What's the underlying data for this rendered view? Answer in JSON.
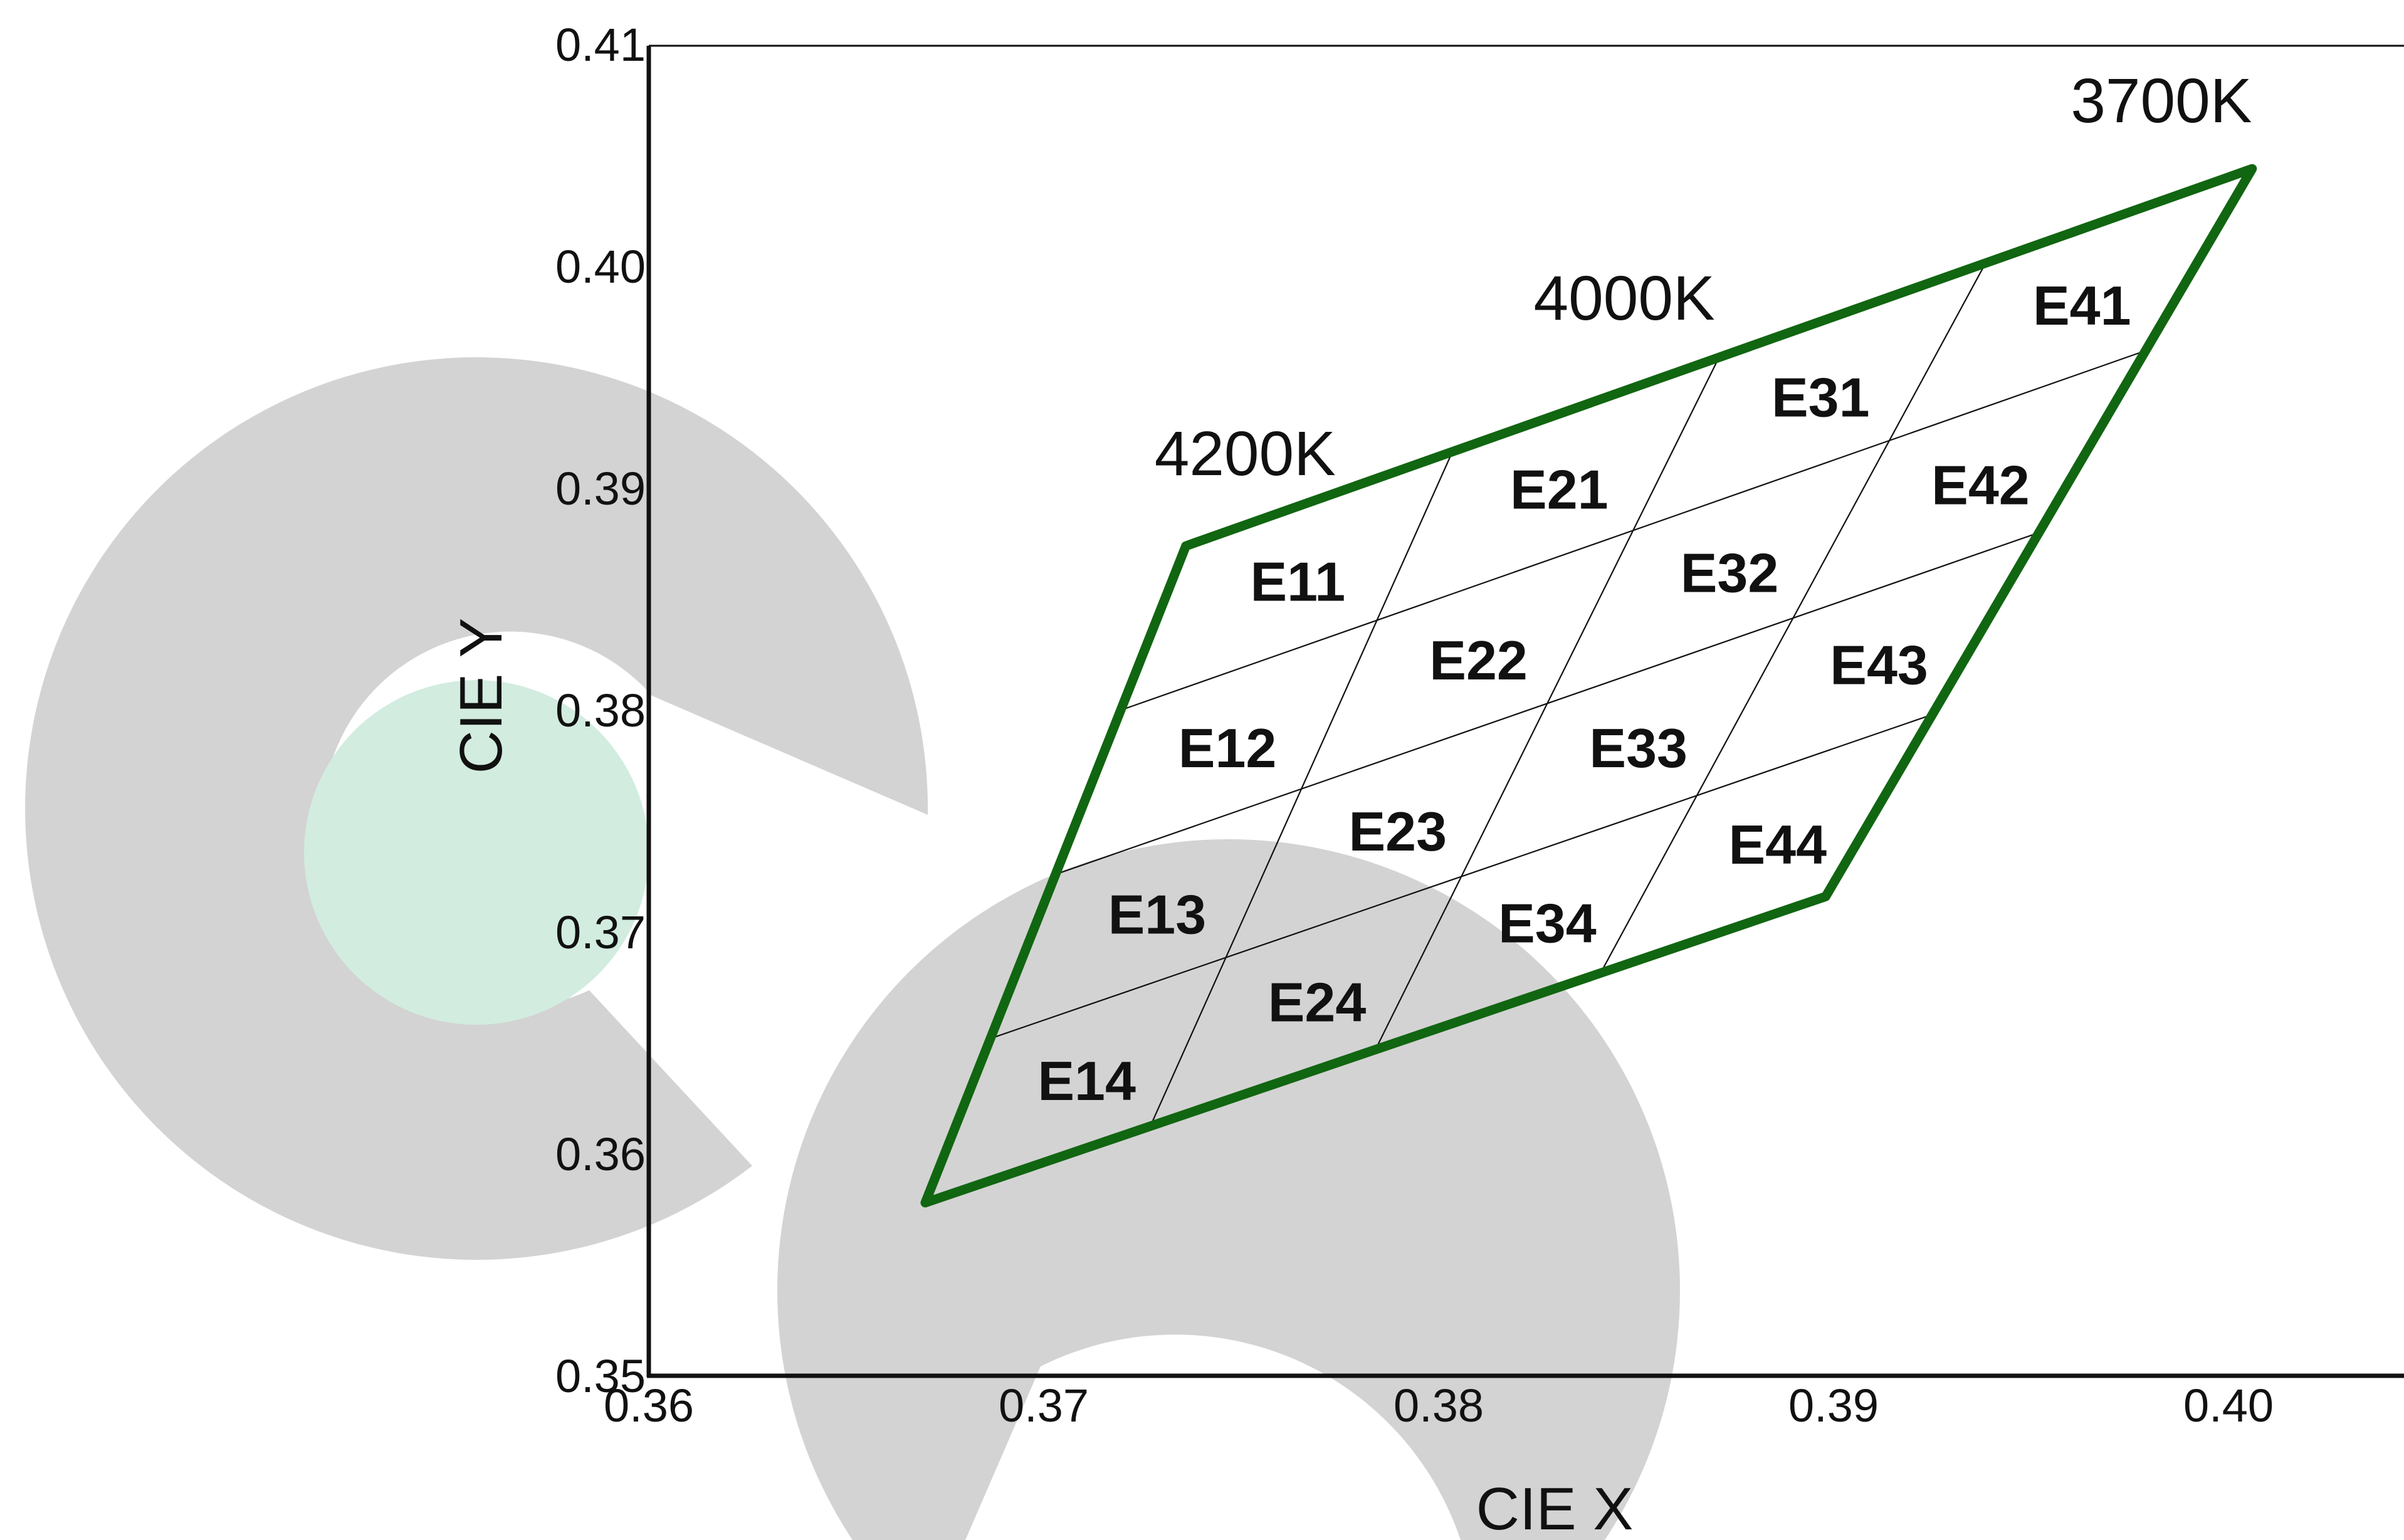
{
  "chart_data": {
    "type": "scatter",
    "title": "",
    "xlabel": "CIE X",
    "ylabel": "CIE Y",
    "xlim": [
      0.36,
      0.405
    ],
    "ylim": [
      0.35,
      0.41
    ],
    "x_tick_labels": [
      "0.36",
      "0.37",
      "0.38",
      "0.39",
      "0.40"
    ],
    "x_tick_values": [
      0.36,
      0.37,
      0.38,
      0.39,
      0.4
    ],
    "y_tick_labels": [
      "0.35",
      "0.36",
      "0.37",
      "0.38",
      "0.39",
      "0.40",
      "0.41"
    ],
    "y_tick_values": [
      0.35,
      0.36,
      0.37,
      0.38,
      0.39,
      0.4,
      0.41
    ],
    "grid": false,
    "outline_color": "#116611",
    "quadrangle": {
      "corners": [
        {
          "x": 0.3736,
          "y": 0.3874
        },
        {
          "x": 0.4006,
          "y": 0.4044
        },
        {
          "x": 0.3898,
          "y": 0.3716
        },
        {
          "x": 0.367,
          "y": 0.3578
        }
      ],
      "divisions": 4
    },
    "cct_labels": [
      {
        "text": "4200K",
        "x": 0.3751,
        "y": 0.3906
      },
      {
        "text": "4000K",
        "x": 0.3847,
        "y": 0.3976
      },
      {
        "text": "3700K",
        "x": 0.3983,
        "y": 0.4065
      }
    ],
    "bins": [
      [
        "E11",
        "E12",
        "E13",
        "E14"
      ],
      [
        "E21",
        "E22",
        "E23",
        "E24"
      ],
      [
        "E31",
        "E32",
        "E33",
        "E34"
      ],
      [
        "E41",
        "E42",
        "E43",
        "E44"
      ]
    ],
    "watermark": {
      "text": "ce",
      "colors": [
        "#d3d3d3",
        "#d2ece0"
      ]
    }
  }
}
